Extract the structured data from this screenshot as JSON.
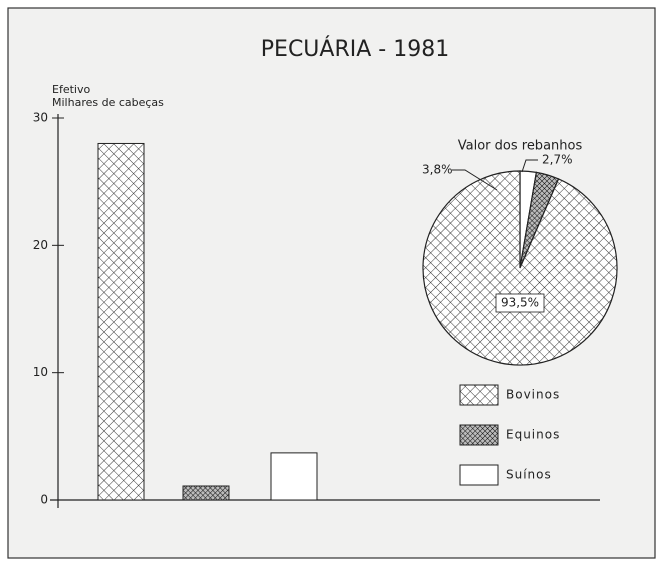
{
  "chart_data": [
    {
      "type": "bar",
      "title": "PECUÁRIA - 1981",
      "y_label": "Efetivo",
      "y_sublabel": "Milhares de cabeças",
      "categories": [
        null
      ],
      "series": [
        {
          "name": "Bovinos",
          "pattern": "crosshatch",
          "values": [
            28
          ]
        },
        {
          "name": "Equinos",
          "pattern": "dense-crosshatch",
          "values": [
            1.1
          ]
        },
        {
          "name": "Suínos",
          "pattern": "none",
          "values": [
            3.7
          ]
        }
      ],
      "ylim": [
        0,
        30
      ],
      "yticks": [
        0,
        10,
        20,
        30
      ]
    },
    {
      "type": "pie",
      "title": "Valor dos rebanhos",
      "values": [
        93.5,
        3.8,
        2.7
      ],
      "value_labels": [
        "93,5%",
        "3,8%",
        "2,7%"
      ]
    }
  ]
}
